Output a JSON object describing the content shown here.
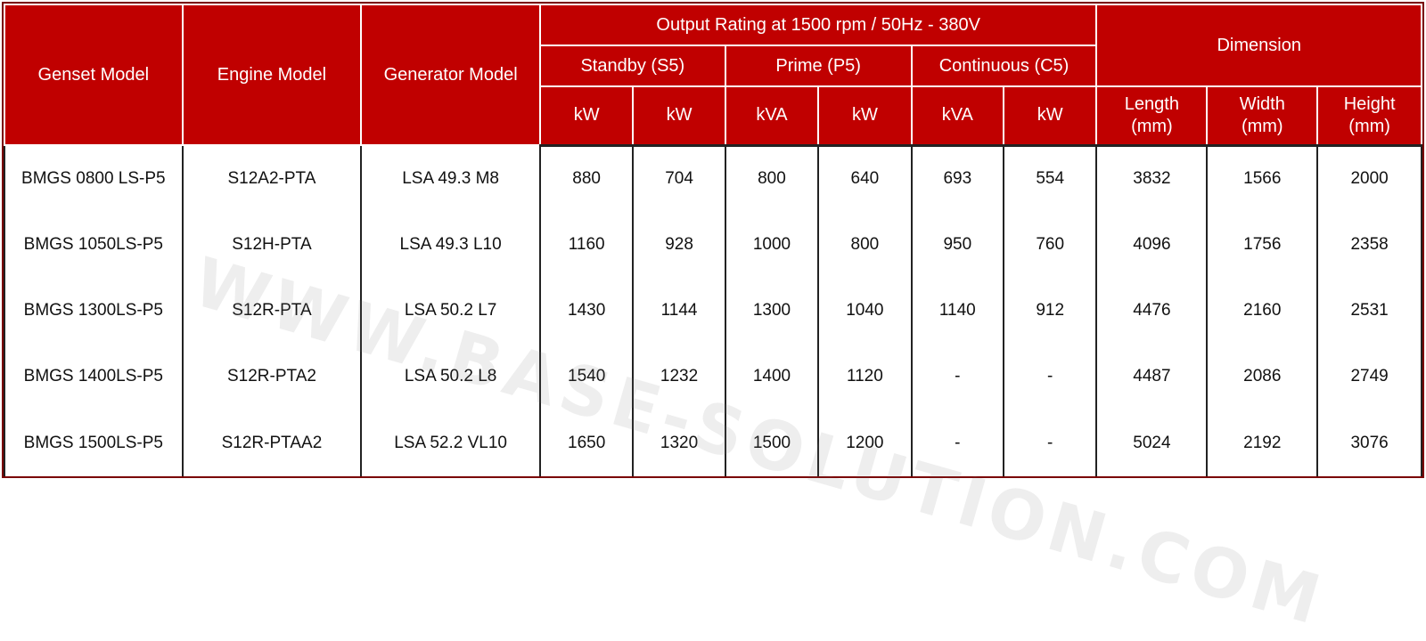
{
  "headers": {
    "genset_model": "Genset Model",
    "engine_model": "Engine Model",
    "generator_model": "Generator Model",
    "output_rating": "Output Rating at 1500 rpm / 50Hz - 380V",
    "standby": "Standby (S5)",
    "prime": "Prime (P5)",
    "continuous": "Continuous (C5)",
    "dimension": "Dimension",
    "units": [
      "kW",
      "kW",
      "kVA",
      "kW",
      "kVA",
      "kW"
    ],
    "length": "Length",
    "width": "Width",
    "height": "Height",
    "mm": "(mm)"
  },
  "rows": [
    [
      "BMGS 0800 LS-P5",
      "S12A2-PTA",
      "LSA 49.3 M8",
      "880",
      "704",
      "800",
      "640",
      "693",
      "554",
      "3832",
      "1566",
      "2000"
    ],
    [
      "BMGS 1050LS-P5",
      "S12H-PTA",
      "LSA 49.3 L10",
      "1160",
      "928",
      "1000",
      "800",
      "950",
      "760",
      "4096",
      "1756",
      "2358"
    ],
    [
      "BMGS 1300LS-P5",
      "S12R-PTA",
      "LSA 50.2 L7",
      "1430",
      "1144",
      "1300",
      "1040",
      "1140",
      "912",
      "4476",
      "2160",
      "2531"
    ],
    [
      "BMGS 1400LS-P5",
      "S12R-PTA2",
      "LSA 50.2 L8",
      "1540",
      "1232",
      "1400",
      "1120",
      "-",
      "-",
      "4487",
      "2086",
      "2749"
    ],
    [
      "BMGS 1500LS-P5",
      "S12R-PTAA2",
      "LSA 52.2 VL10",
      "1650",
      "1320",
      "1500",
      "1200",
      "-",
      "-",
      "5024",
      "2192",
      "3076"
    ]
  ],
  "watermark": "WWW.BASE-SOLUTION.COM"
}
